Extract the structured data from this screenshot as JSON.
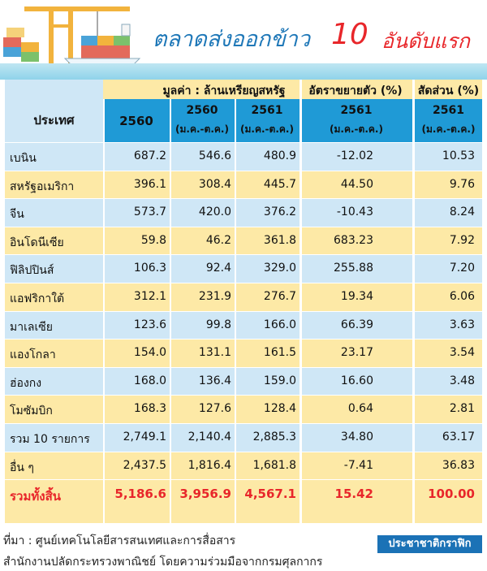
{
  "title": {
    "main": "ตลาดส่งออกข้าว",
    "num": "10",
    "rest": "อันดับแรก"
  },
  "header": {
    "value_group": "มูลค่า : ล้านเหรียญสหรัฐ",
    "growth_group": "อัตราขยายตัว (%)",
    "share_group": "สัดส่วน (%)",
    "country": "ประเทศ",
    "col_2560": "2560",
    "col_2560_range_year": "2560",
    "col_2560_range": "(ม.ค.-ต.ค.)",
    "col_2561_range_year": "2561",
    "col_2561_range": "(ม.ค.-ต.ค.)",
    "growth_year": "2561",
    "growth_range": "(ม.ค.-ต.ค.)",
    "share_year": "2561",
    "share_range": "(ม.ค.-ต.ค.)"
  },
  "chart_data": {
    "type": "table",
    "title": "ตลาดส่งออกข้าว 10 อันดับแรก",
    "columns": [
      "ประเทศ",
      "2560",
      "2560 (ม.ค.-ต.ค.)",
      "2561 (ม.ค.-ต.ค.)",
      "อัตราขยายตัว (%) 2561 (ม.ค.-ต.ค.)",
      "สัดส่วน (%) 2561 (ม.ค.-ต.ค.)"
    ],
    "rows": [
      [
        "เบนิน",
        "687.2",
        "546.6",
        "480.9",
        "-12.02",
        "10.53"
      ],
      [
        "สหรัฐอเมริกา",
        "396.1",
        "308.4",
        "445.7",
        "44.50",
        "9.76"
      ],
      [
        "จีน",
        "573.7",
        "420.0",
        "376.2",
        "-10.43",
        "8.24"
      ],
      [
        "อินโดนีเซีย",
        "59.8",
        "46.2",
        "361.8",
        "683.23",
        "7.92"
      ],
      [
        "ฟิลิปปินส์",
        "106.3",
        "92.4",
        "329.0",
        "255.88",
        "7.20"
      ],
      [
        "แอฟริกาใต้",
        "312.1",
        "231.9",
        "276.7",
        "19.34",
        "6.06"
      ],
      [
        "มาเลเซีย",
        "123.6",
        "99.8",
        "166.0",
        "66.39",
        "3.63"
      ],
      [
        "แองโกลา",
        "154.0",
        "131.1",
        "161.5",
        "23.17",
        "3.54"
      ],
      [
        "ฮ่องกง",
        "168.0",
        "136.4",
        "159.0",
        "16.60",
        "3.48"
      ],
      [
        "โมซัมบิก",
        "168.3",
        "127.6",
        "128.4",
        "0.64",
        "2.81"
      ],
      [
        "รวม 10 รายการ",
        "2,749.1",
        "2,140.4",
        "2,885.3",
        "34.80",
        "63.17"
      ],
      [
        "อื่น ๆ",
        "2,437.5",
        "1,816.4",
        "1,681.8",
        "-7.41",
        "36.83"
      ]
    ],
    "total_row": [
      "รวมทั้งสิ้น",
      "5,186.6",
      "3,956.9",
      "4,567.1",
      "15.42",
      "100.00"
    ]
  },
  "footer": {
    "source_line1": "ที่มา : ศูนย์เทคโนโลยีสารสนเทศและการสื่อสาร",
    "source_line2": "สำนักงานปลัดกระทรวงพาณิชย์ โดยความร่วมมือจากกรมศุลกากร",
    "logo_text": "ประชาชาติกราฟิก"
  },
  "colors": {
    "blue_header": "#1f9ad6",
    "title_blue": "#1f78b8",
    "total_red": "#e8262a",
    "stripe_blue": "#cfe7f6",
    "stripe_yellow": "#fde9a6"
  }
}
